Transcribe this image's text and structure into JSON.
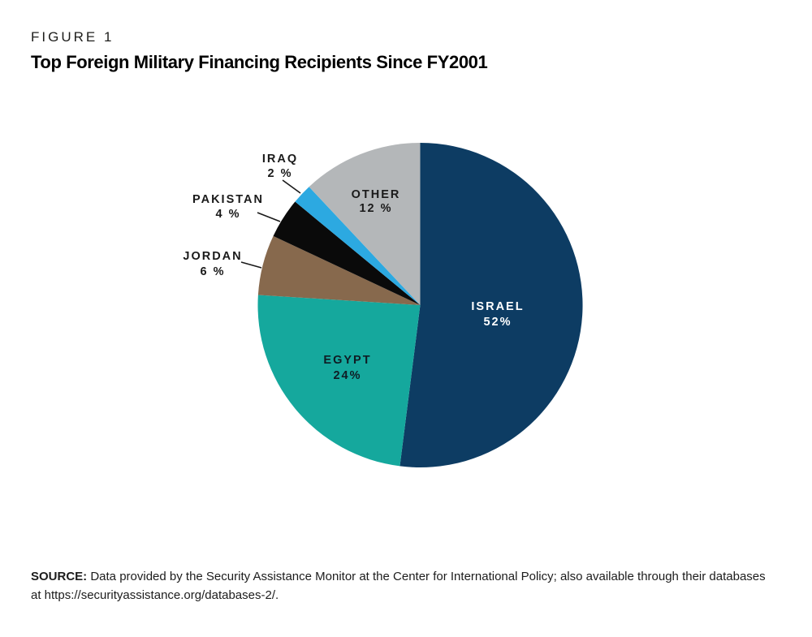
{
  "figure": {
    "label": "FIGURE 1",
    "title": "Top Foreign Military Financing Recipients Since FY2001"
  },
  "source": {
    "prefix": "SOURCE:",
    "text": " Data provided by the Security Assistance Monitor at the Center for International Policy; also available through their databases at https://securityassistance.org/databases-2/."
  },
  "chart_data": {
    "type": "pie",
    "title": "Top Foreign Military Financing Recipients Since FY2001",
    "start_angle_deg": 0,
    "direction": "clockwise",
    "legend": "none",
    "label_style": "large slices labeled inside; small slices labeled outside with leader lines",
    "categories": [
      "ISRAEL",
      "EGYPT",
      "JORDAN",
      "PAKISTAN",
      "IRAQ",
      "OTHER"
    ],
    "values": [
      52,
      24,
      6,
      4,
      2,
      12
    ],
    "slices": [
      {
        "label": "ISRAEL",
        "value": 52,
        "display": "52%",
        "color": "#0d3c63",
        "label_placement": "inside",
        "label_color": "#ffffff"
      },
      {
        "label": "EGYPT",
        "value": 24,
        "display": "24%",
        "color": "#15a89d",
        "label_placement": "inside",
        "label_color": "#0f1c24"
      },
      {
        "label": "JORDAN",
        "value": 6,
        "display": "6 %",
        "color": "#87694d",
        "label_placement": "outside",
        "label_color": "#1a1a1a"
      },
      {
        "label": "PAKISTAN",
        "value": 4,
        "display": "4 %",
        "color": "#0a0a0a",
        "label_placement": "outside",
        "label_color": "#1a1a1a"
      },
      {
        "label": "IRAQ",
        "value": 2,
        "display": "2 %",
        "color": "#2ca9e1",
        "label_placement": "outside",
        "label_color": "#1a1a1a"
      },
      {
        "label": "OTHER",
        "value": 12,
        "display": "12 %",
        "color": "#b4b7b9",
        "label_placement": "inside",
        "label_color": "#1a1a1a"
      }
    ]
  }
}
